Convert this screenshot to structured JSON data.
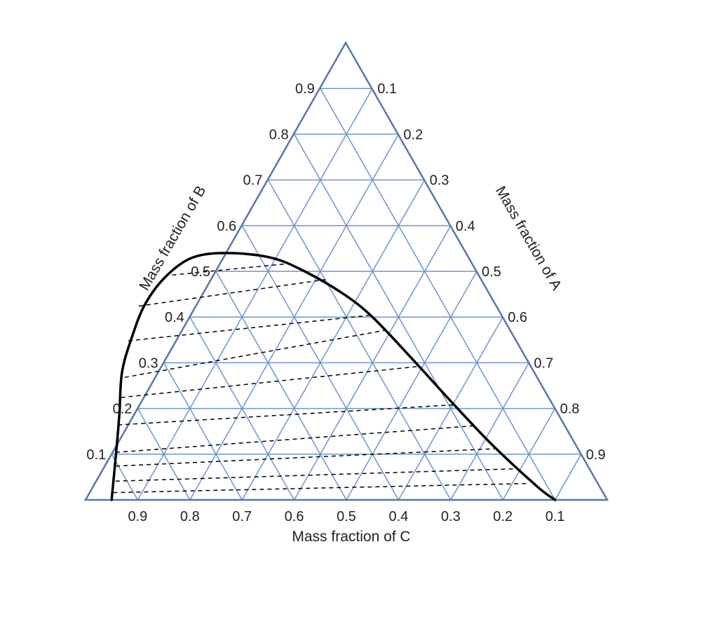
{
  "chart_data": {
    "type": "ternary",
    "grid": true,
    "grid_step": 0.1,
    "colors": {
      "grid": "#6f94cc",
      "frame": "#5a76a8",
      "binodal": "#000000",
      "tie_lines": "#000000",
      "text": "#222222"
    },
    "axes": {
      "bottom": {
        "title": "Mass fraction of C",
        "ticks": [
          "0.9",
          "0.8",
          "0.7",
          "0.6",
          "0.5",
          "0.4",
          "0.3",
          "0.2",
          "0.1"
        ]
      },
      "left": {
        "title": "Mass fraction of B",
        "ticks": [
          "0.1",
          "0.2",
          "0.3",
          "0.4",
          "0.5",
          "0.6",
          "0.7",
          "0.8",
          "0.9"
        ]
      },
      "right": {
        "title": "Mass fraction of A",
        "ticks": [
          "0.1",
          "0.2",
          "0.3",
          "0.4",
          "0.5",
          "0.6",
          "0.7",
          "0.8",
          "0.9"
        ]
      }
    },
    "binodal_curve": [
      {
        "c": 0.95,
        "b": 0.0
      },
      {
        "c": 0.88,
        "b": 0.12
      },
      {
        "c": 0.84,
        "b": 0.19
      },
      {
        "c": 0.79,
        "b": 0.28
      },
      {
        "c": 0.73,
        "b": 0.36
      },
      {
        "c": 0.67,
        "b": 0.43
      },
      {
        "c": 0.6,
        "b": 0.49
      },
      {
        "c": 0.53,
        "b": 0.53
      },
      {
        "c": 0.46,
        "b": 0.54
      },
      {
        "c": 0.38,
        "b": 0.53
      },
      {
        "c": 0.33,
        "b": 0.5
      },
      {
        "c": 0.28,
        "b": 0.45
      },
      {
        "c": 0.25,
        "b": 0.4
      },
      {
        "c": 0.22,
        "b": 0.31
      },
      {
        "c": 0.19,
        "b": 0.21
      },
      {
        "c": 0.16,
        "b": 0.12
      },
      {
        "c": 0.12,
        "b": 0.03
      },
      {
        "c": 0.1,
        "b": 0.0
      }
    ],
    "tie_lines": [
      {
        "from": {
          "c": 0.939,
          "b": 0.016
        },
        "to": {
          "c": 0.133,
          "b": 0.036
        }
      },
      {
        "from": {
          "c": 0.922,
          "b": 0.041
        },
        "to": {
          "c": 0.144,
          "b": 0.068
        }
      },
      {
        "from": {
          "c": 0.905,
          "b": 0.074
        },
        "to": {
          "c": 0.159,
          "b": 0.112
        }
      },
      {
        "from": {
          "c": 0.89,
          "b": 0.104
        },
        "to": {
          "c": 0.176,
          "b": 0.162
        }
      },
      {
        "from": {
          "c": 0.856,
          "b": 0.164
        },
        "to": {
          "c": 0.19,
          "b": 0.208
        }
      },
      {
        "from": {
          "c": 0.82,
          "b": 0.224
        },
        "to": {
          "c": 0.216,
          "b": 0.292
        }
      },
      {
        "from": {
          "c": 0.791,
          "b": 0.268
        },
        "to": {
          "c": 0.235,
          "b": 0.372
        }
      },
      {
        "from": {
          "c": 0.744,
          "b": 0.348
        },
        "to": {
          "c": 0.252,
          "b": 0.404
        }
      },
      {
        "from": {
          "c": 0.686,
          "b": 0.424
        },
        "to": {
          "c": 0.299,
          "b": 0.482
        }
      },
      {
        "from": {
          "c": 0.588,
          "b": 0.492
        },
        "to": {
          "c": 0.361,
          "b": 0.516
        }
      }
    ]
  }
}
